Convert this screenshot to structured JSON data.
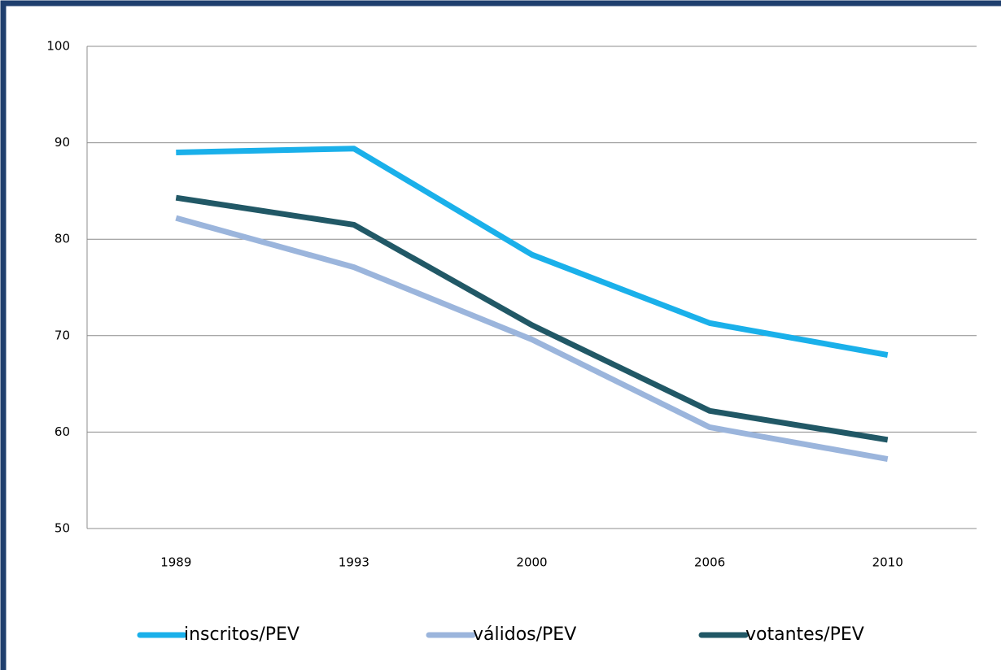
{
  "chart_data": {
    "type": "line",
    "categories": [
      "1989",
      "1993",
      "2000",
      "2006",
      "2010"
    ],
    "series": [
      {
        "name": "inscritos/PEV",
        "color": "#1ab0ea",
        "values": [
          89.0,
          89.4,
          78.4,
          71.3,
          68.0
        ]
      },
      {
        "name": "válidos/PEV",
        "color": "#9bb5dc",
        "values": [
          82.2,
          77.1,
          69.6,
          60.5,
          57.2
        ]
      },
      {
        "name": "votantes/PEV",
        "color": "#215866",
        "values": [
          84.3,
          81.5,
          71.1,
          62.2,
          59.2
        ]
      }
    ],
    "ylim": [
      50,
      100
    ],
    "yticks": [
      50,
      60,
      70,
      80,
      90,
      100
    ],
    "grid": true,
    "legend": "bottom"
  }
}
